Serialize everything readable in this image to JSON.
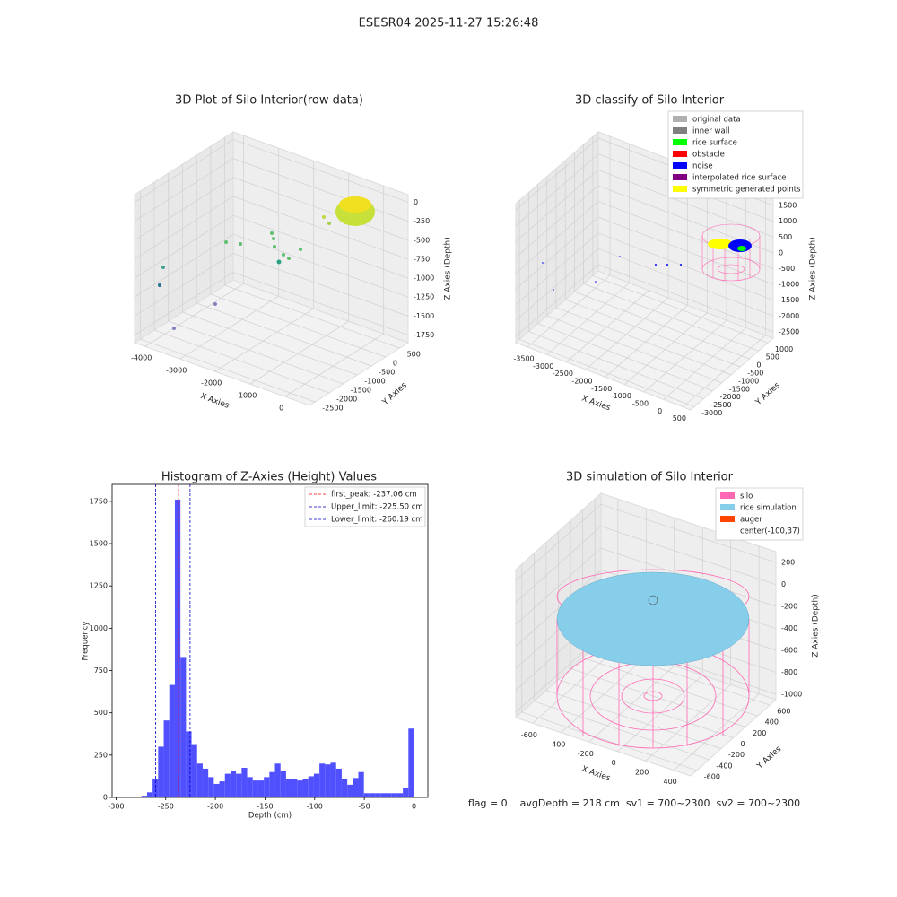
{
  "title": "ESESR04 2025-11-27 15:26:48",
  "chart_data": [
    {
      "type": "scatter3d",
      "title": "3D Plot of Silo Interior(row data)",
      "xlabel": "X Axies",
      "ylabel": "Y Axies",
      "zlabel": "Z Axies (Depth)",
      "xlim": [
        -4300,
        700
      ],
      "xticks": [
        -4000,
        -3000,
        -2000,
        -1000,
        0
      ],
      "ylim": [
        -2700,
        800
      ],
      "yticks": [
        -2500,
        -2000,
        -1500,
        -1000,
        -500,
        0,
        500
      ],
      "zlim": [
        -1850,
        100
      ],
      "zticks": [
        -1750,
        -1500,
        -1250,
        -1000,
        -750,
        -500,
        -250,
        0
      ],
      "grid": true
    },
    {
      "type": "scatter3d",
      "title": "3D classify of Silo Interior",
      "xlabel": "X Axies",
      "ylabel": "Y Axies",
      "zlabel": "Z Axies (Depth)",
      "xlim": [
        -3800,
        700
      ],
      "xticks": [
        -3500,
        -3000,
        -2500,
        -2000,
        -1500,
        -1000,
        -500,
        0,
        500
      ],
      "ylim": [
        -3200,
        1300
      ],
      "yticks": [
        -3000,
        -2500,
        -2000,
        -1500,
        -1000,
        -500,
        0,
        500,
        1000
      ],
      "zlim": [
        -2700,
        1700
      ],
      "zticks": [
        -2500,
        -2000,
        -1500,
        -1000,
        -500,
        0,
        500,
        1000,
        1500
      ],
      "grid": true,
      "legend": "upper right",
      "series": [
        {
          "name": "original data",
          "color": "#b0b0b0"
        },
        {
          "name": "inner wall",
          "color": "#808080"
        },
        {
          "name": "rice surface",
          "color": "#00ff00"
        },
        {
          "name": "obstacle",
          "color": "#ff0000"
        },
        {
          "name": "noise",
          "color": "#0000ff"
        },
        {
          "name": "interpolated rice surface",
          "color": "#800080"
        },
        {
          "name": "symmetric generated points",
          "color": "#ffff00"
        }
      ]
    },
    {
      "type": "histogram",
      "title": "Histogram of Z-Axies (Height) Values",
      "xlabel": "Depth (cm)",
      "ylabel": "Frequency",
      "color": "#5050ff",
      "bins": [
        -280,
        -274.4,
        -268.8,
        -263.2,
        -257.6,
        -252,
        -246.4,
        -240.8,
        -235.2,
        -229.6,
        -224,
        -218.4,
        -212.8,
        -207.2,
        -201.6,
        -196,
        -190.4,
        -184.8,
        -179.2,
        -173.6,
        -168,
        -162.4,
        -156.8,
        -151.2,
        -145.6,
        -140,
        -134.4,
        -128.8,
        -123.2,
        -117.6,
        -112,
        -106.4,
        -100.8,
        -95.2,
        -89.6,
        -84,
        -78.4,
        -72.8,
        -67.2,
        -61.6,
        -56,
        -50.4,
        -44.8,
        -39.2,
        -33.6,
        -28,
        -22.4,
        -16.8,
        -11.2,
        -5.6,
        0
      ],
      "values": [
        5,
        10,
        30,
        110,
        300,
        455,
        665,
        1760,
        830,
        390,
        315,
        200,
        170,
        120,
        80,
        95,
        140,
        155,
        140,
        175,
        120,
        100,
        100,
        120,
        150,
        200,
        155,
        110,
        110,
        100,
        110,
        125,
        140,
        200,
        195,
        205,
        170,
        110,
        75,
        115,
        150,
        25,
        25,
        25,
        25,
        25,
        25,
        25,
        55,
        407
      ],
      "xlim": [
        -304,
        14
      ],
      "xticks": [
        -300,
        -250,
        -200,
        -150,
        -100,
        -50,
        0
      ],
      "ylim": [
        0,
        1850
      ],
      "yticks": [
        0,
        250,
        500,
        750,
        1000,
        1250,
        1500,
        1750
      ],
      "legend": "upper right",
      "lines": [
        {
          "name": "first_peak: -237.06 cm",
          "value": -237.06,
          "color": "#ff0000"
        },
        {
          "name": "Upper_limit: -225.50 cm",
          "value": -225.5,
          "color": "#0000cc"
        },
        {
          "name": "Lower_limit: -260.19 cm",
          "value": -260.19,
          "color": "#0000cc"
        }
      ]
    },
    {
      "type": "surface3d",
      "title": "3D simulation of Silo Interior",
      "xlabel": "X Axies",
      "ylabel": "Y Axies",
      "zlabel": "Z Axies (Depth)",
      "xlim": [
        -720,
        520
      ],
      "xticks": [
        -600,
        -400,
        -200,
        0,
        200,
        400
      ],
      "ylim": [
        -700,
        700
      ],
      "yticks": [
        -600,
        -400,
        -200,
        0,
        200,
        400,
        600
      ],
      "zlim": [
        -1050,
        300
      ],
      "zticks": [
        -1000,
        -800,
        -600,
        -400,
        -200,
        0,
        200
      ],
      "grid": true,
      "legend": "upper right",
      "series": [
        {
          "name": "silo",
          "color": "#ff69b4"
        },
        {
          "name": "rice simulation",
          "color": "#87ceeb"
        },
        {
          "name": "auger",
          "color": "#ff4500"
        },
        {
          "name": "center(-100,37)",
          "color": null
        }
      ]
    }
  ],
  "footer": "flag = 0    avgDepth = 218 cm  sv1 = 700~2300  sv2 = 700~2300"
}
